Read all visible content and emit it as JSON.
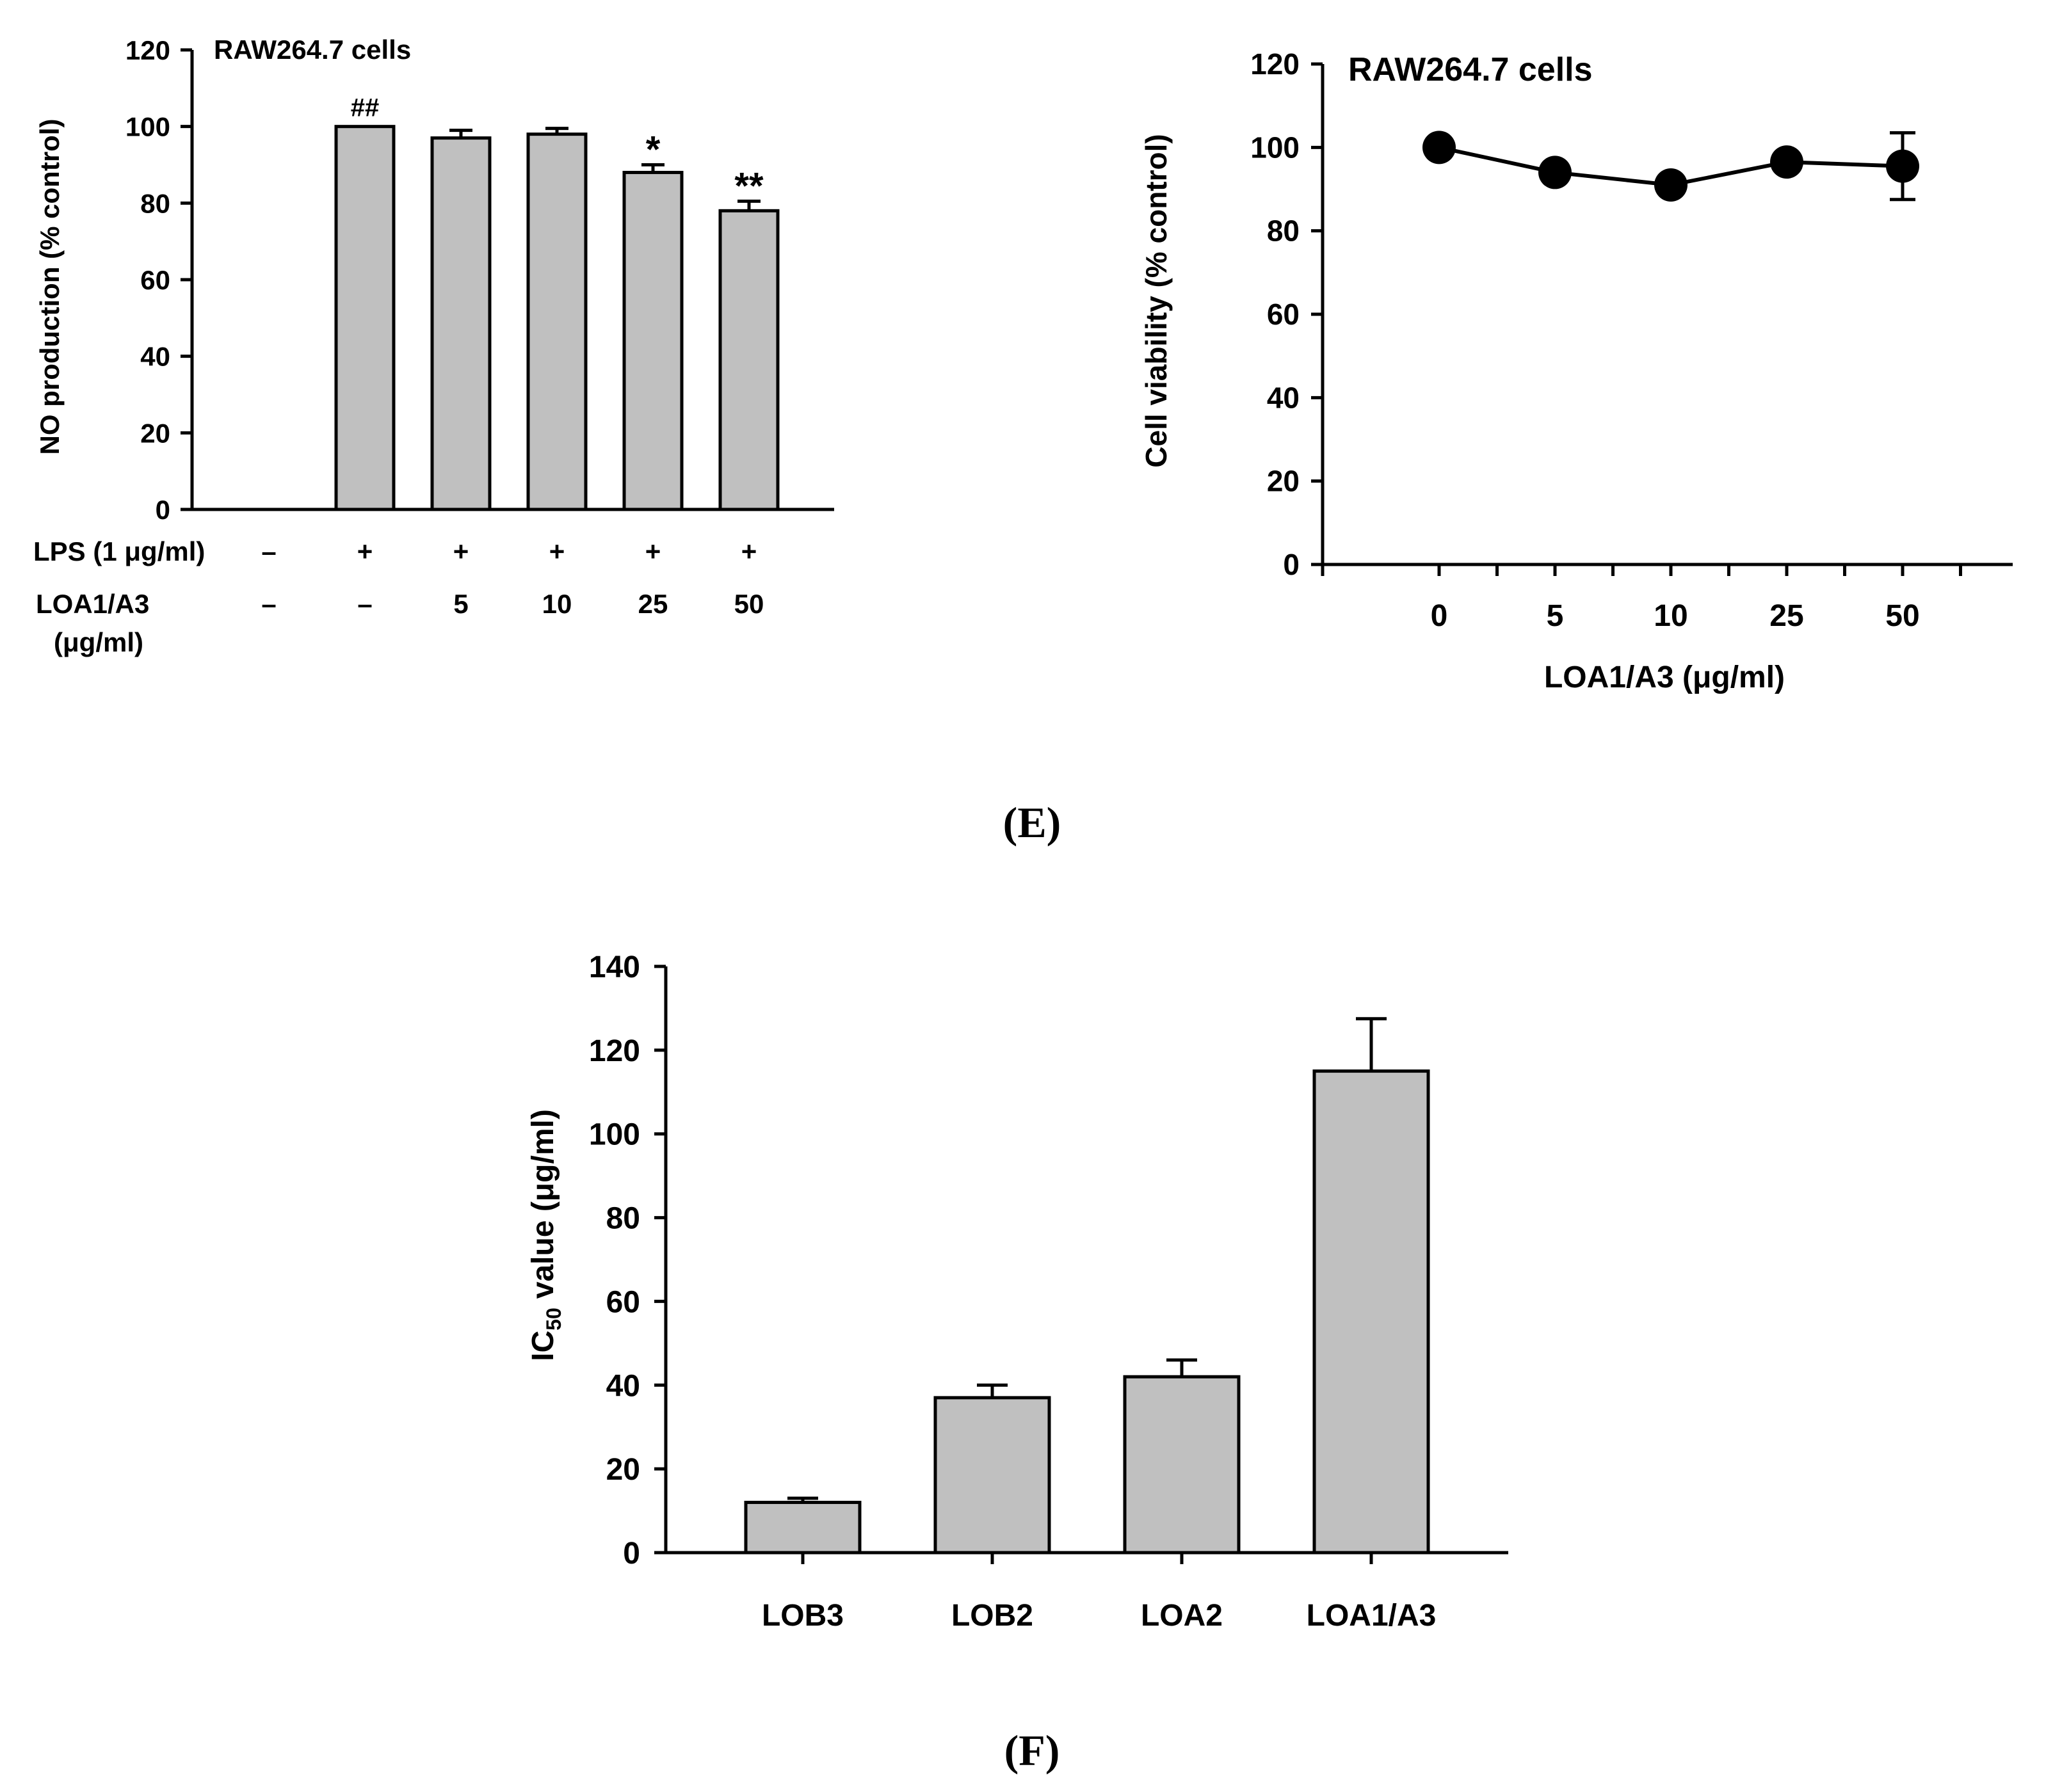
{
  "chart_data": [
    {
      "type": "bar",
      "title": "RAW264.7 cells",
      "ylabel": "NO production (% control)",
      "ylim": [
        0,
        120
      ],
      "yticks": [
        "0",
        "20",
        "40",
        "60",
        "80",
        "100",
        "120"
      ],
      "row_labels": {
        "lps": "LPS (1 μg/ml)",
        "loa_line1": "LOA1/A3",
        "loa_line2": "(μg/ml)"
      },
      "lps": [
        "–",
        "+",
        "+",
        "+",
        "+",
        "+"
      ],
      "loa": [
        "–",
        "–",
        "5",
        "10",
        "25",
        "50"
      ],
      "values": [
        0,
        100,
        97,
        98,
        88,
        78
      ],
      "errors": [
        0,
        0,
        2,
        1.5,
        2,
        2.5
      ],
      "annotations": [
        "",
        "##",
        "",
        "",
        "*",
        "**"
      ]
    },
    {
      "type": "line",
      "title": "RAW264.7 cells",
      "ylabel": "Cell viability (% control)",
      "xlabel": "LOA1/A3 (μg/ml)",
      "ylim": [
        0,
        120
      ],
      "yticks": [
        "0",
        "20",
        "40",
        "60",
        "80",
        "100",
        "120"
      ],
      "x": [
        "0",
        "5",
        "10",
        "25",
        "50"
      ],
      "values": [
        100,
        94,
        91,
        96.5,
        95.5
      ],
      "errors": [
        1.5,
        1.5,
        1.5,
        1,
        8
      ]
    },
    {
      "type": "bar",
      "ylabel": "IC50 value (μg/ml)",
      "ylabel_parts": {
        "main": "IC",
        "sub": "50",
        "rest": "value (μg/ml)"
      },
      "ylim": [
        0,
        140
      ],
      "yticks": [
        "0",
        "20",
        "40",
        "60",
        "80",
        "100",
        "120",
        "140"
      ],
      "categories": [
        "LOB3",
        "LOB2",
        "LOA2",
        "LOA1/A3"
      ],
      "values": [
        12,
        37,
        42,
        115
      ],
      "errors": [
        1,
        3,
        4,
        12.5
      ]
    }
  ],
  "panel_labels": {
    "e": "(E)",
    "f": "(F)"
  }
}
